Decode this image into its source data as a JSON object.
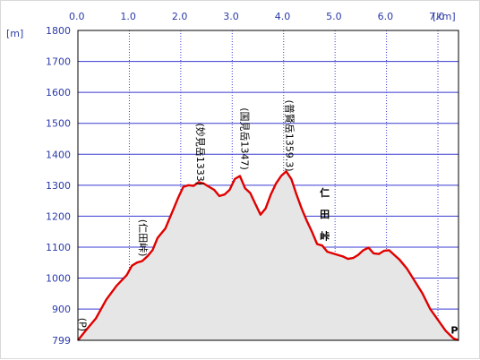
{
  "chart_data": {
    "type": "area",
    "x_unit": "[km]",
    "y_unit": "[m]",
    "xlim": [
      0,
      7.4
    ],
    "ylim": [
      799,
      1800
    ],
    "x_ticks": [
      0.0,
      1.0,
      2.0,
      3.0,
      4.0,
      5.0,
      6.0,
      7.0
    ],
    "x_tick_labels": [
      "0.0",
      "1.0",
      "2.0",
      "3.0",
      "4.0",
      "5.0",
      "6.0",
      "7.0"
    ],
    "y_ticks": [
      1800,
      1700,
      1600,
      1500,
      1400,
      1300,
      1200,
      1100,
      1000,
      900,
      799
    ],
    "y_tick_labels": [
      "1800",
      "1700",
      "1600",
      "1500",
      "1400",
      "1300",
      "1200",
      "1100",
      "1000",
      "900",
      "799"
    ],
    "grid": true,
    "series": [
      {
        "color": "#e00000",
        "fill": "#e6e6e6",
        "points": [
          [
            0.0,
            799
          ],
          [
            0.15,
            830
          ],
          [
            0.35,
            870
          ],
          [
            0.55,
            930
          ],
          [
            0.75,
            975
          ],
          [
            0.95,
            1010
          ],
          [
            1.05,
            1040
          ],
          [
            1.15,
            1050
          ],
          [
            1.25,
            1055
          ],
          [
            1.35,
            1070
          ],
          [
            1.45,
            1090
          ],
          [
            1.55,
            1130
          ],
          [
            1.7,
            1160
          ],
          [
            1.85,
            1220
          ],
          [
            1.95,
            1260
          ],
          [
            2.05,
            1295
          ],
          [
            2.15,
            1300
          ],
          [
            2.25,
            1298
          ],
          [
            2.35,
            1310
          ],
          [
            2.45,
            1305
          ],
          [
            2.55,
            1295
          ],
          [
            2.65,
            1285
          ],
          [
            2.75,
            1265
          ],
          [
            2.85,
            1270
          ],
          [
            2.95,
            1285
          ],
          [
            3.05,
            1320
          ],
          [
            3.15,
            1330
          ],
          [
            3.25,
            1290
          ],
          [
            3.35,
            1275
          ],
          [
            3.45,
            1240
          ],
          [
            3.55,
            1205
          ],
          [
            3.65,
            1225
          ],
          [
            3.75,
            1270
          ],
          [
            3.85,
            1305
          ],
          [
            3.95,
            1330
          ],
          [
            4.05,
            1345
          ],
          [
            4.15,
            1320
          ],
          [
            4.25,
            1270
          ],
          [
            4.35,
            1225
          ],
          [
            4.45,
            1185
          ],
          [
            4.55,
            1150
          ],
          [
            4.65,
            1110
          ],
          [
            4.75,
            1105
          ],
          [
            4.85,
            1085
          ],
          [
            4.95,
            1080
          ],
          [
            5.05,
            1075
          ],
          [
            5.15,
            1070
          ],
          [
            5.25,
            1062
          ],
          [
            5.35,
            1065
          ],
          [
            5.45,
            1075
          ],
          [
            5.55,
            1090
          ],
          [
            5.65,
            1098
          ],
          [
            5.75,
            1080
          ],
          [
            5.85,
            1078
          ],
          [
            5.95,
            1088
          ],
          [
            6.05,
            1090
          ],
          [
            6.15,
            1075
          ],
          [
            6.25,
            1060
          ],
          [
            6.4,
            1030
          ],
          [
            6.55,
            990
          ],
          [
            6.7,
            950
          ],
          [
            6.85,
            900
          ],
          [
            7.0,
            865
          ],
          [
            7.15,
            830
          ],
          [
            7.3,
            805
          ],
          [
            7.4,
            799
          ]
        ]
      }
    ],
    "annotations": [
      {
        "text": "(仁田峠)",
        "x": 1.2,
        "y": 1130,
        "orientation": "vertical"
      },
      {
        "text": "(妙見岳1333)",
        "x": 2.32,
        "y": 1400,
        "orientation": "vertical"
      },
      {
        "text": "(国見岳1347)",
        "x": 3.18,
        "y": 1450,
        "orientation": "vertical"
      },
      {
        "text": "(普賢岳1359.3)",
        "x": 4.05,
        "y": 1460,
        "orientation": "vertical"
      },
      {
        "text": "仁",
        "x": 4.8,
        "y": 1265,
        "orientation": "horizontal"
      },
      {
        "text": "田",
        "x": 4.8,
        "y": 1195,
        "orientation": "horizontal"
      },
      {
        "text": "峠",
        "x": 4.8,
        "y": 1125,
        "orientation": "horizontal"
      },
      {
        "text": "(P)",
        "x": 0.03,
        "y": 850,
        "orientation": "vertical"
      },
      {
        "text": "P",
        "x": 7.32,
        "y": 820,
        "orientation": "horizontal"
      }
    ]
  }
}
